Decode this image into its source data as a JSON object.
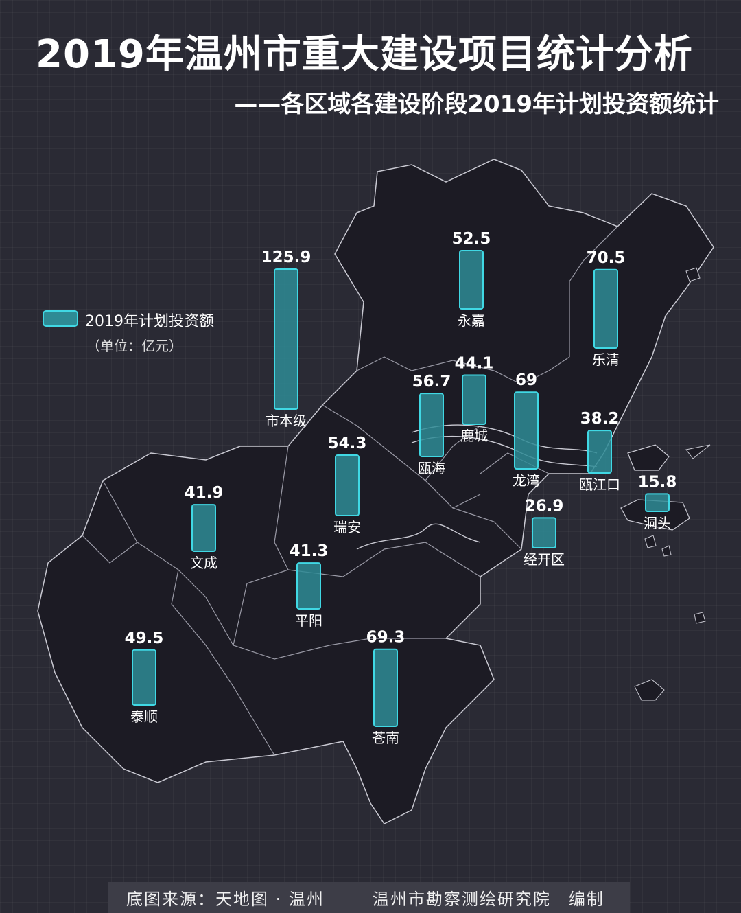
{
  "title": "2019年温州市重大建设项目统计分析",
  "subtitle": "——各区域各建设阶段2019年计划投资额统计",
  "legend": {
    "label": "2019年计划投资额",
    "unit": "（单位：亿元）",
    "swatch_fill": "#2e8b95",
    "swatch_border": "#40d8e4"
  },
  "footer": {
    "source": "底图来源：天地图 · 温州",
    "org": "温州市勘察测绘研究院",
    "edit": "编制"
  },
  "colors": {
    "background": "#2a2a34",
    "land": "#1c1b24",
    "boundary": "#c9c9d2",
    "bar_fill": "#2e8b95",
    "bar_border": "#40d8e4"
  },
  "chart_data": {
    "type": "bar",
    "title": "2019年温州市重大建设项目统计分析",
    "subtitle": "——各区域各建设阶段2019年计划投资额统计",
    "unit": "亿元",
    "categories": [
      "市本级",
      "永嘉",
      "乐清",
      "鹿城",
      "瓯海",
      "龙湾",
      "瓯江口",
      "洞头",
      "瑞安",
      "经开区",
      "文成",
      "平阳",
      "泰顺",
      "苍南"
    ],
    "series": [
      {
        "name": "2019年计划投资额",
        "values": [
          125.9,
          52.5,
          70.5,
          44.1,
          56.7,
          69,
          38.2,
          15.8,
          54.3,
          26.9,
          41.9,
          41.3,
          49.5,
          69.3
        ]
      }
    ]
  }
}
